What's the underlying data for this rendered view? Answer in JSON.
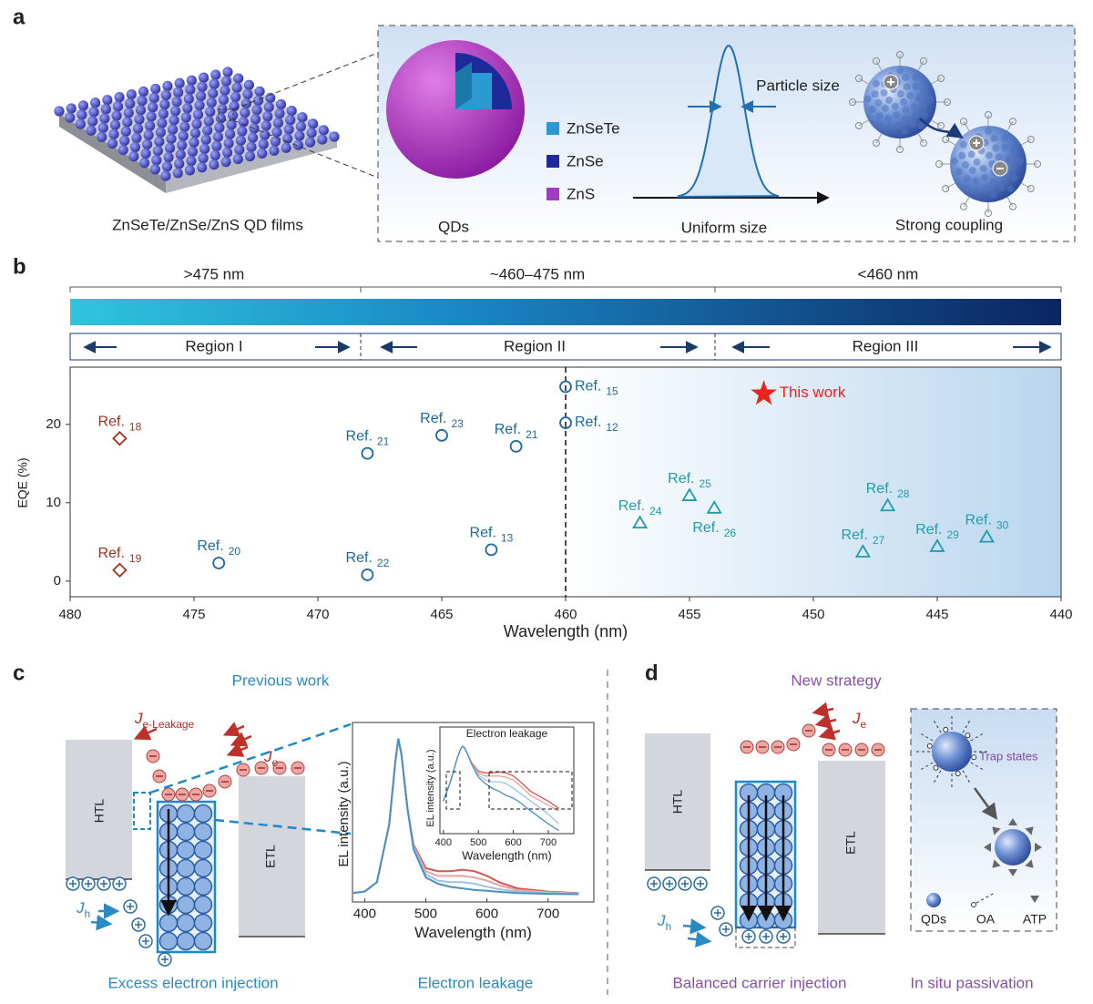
{
  "panel_a": {
    "label": "a",
    "film_caption": "ZnSeTe/ZnSe/ZnS QD films",
    "legend": [
      "ZnSeTe",
      "ZnSe",
      "ZnS"
    ],
    "legend_colors": [
      "#2a9ad0",
      "#1e2a9a",
      "#a03cc0"
    ],
    "qds": "QDs",
    "particle_size": "Particle size",
    "uniform_size": "Uniform size",
    "strong_coupling": "Strong coupling"
  },
  "panel_b": {
    "label": "b",
    "ranges": [
      ">475 nm",
      "~460–475 nm",
      "<460 nm"
    ],
    "regions": [
      "Region I",
      "Region II",
      "Region III"
    ]
  },
  "chart_data": [
    {
      "type": "scatter",
      "xlabel": "Wavelength (nm)",
      "ylabel": "EQE (%)",
      "xlim": [
        480,
        440
      ],
      "ylim": [
        -2,
        27.3
      ],
      "xticks": [
        480,
        475,
        470,
        465,
        460,
        455,
        450,
        445,
        440
      ],
      "yticks": [
        0,
        10,
        20
      ],
      "vline": 460,
      "series": [
        {
          "marker": "diamond",
          "color": "#a3301f",
          "x": [
            478,
            478
          ],
          "values": [
            18.2,
            1.4
          ],
          "labels": [
            "Ref.",
            "Ref."
          ],
          "refs": [
            "18",
            "19"
          ]
        },
        {
          "marker": "circle",
          "color": "#1d6a9a",
          "x": [
            474,
            468,
            468,
            465,
            462,
            463,
            460,
            460
          ],
          "values": [
            2.3,
            16.3,
            0.8,
            18.6,
            17.2,
            4.0,
            24.8,
            20.2
          ],
          "labels": [
            "Ref.",
            "Ref.",
            "Ref.",
            "Ref.",
            "Ref.",
            "Ref.",
            "Ref.",
            "Ref."
          ],
          "refs": [
            "20",
            "21",
            "22",
            "23",
            "21",
            "13",
            "15",
            "12"
          ]
        },
        {
          "marker": "triangle",
          "color": "#1f9bab",
          "x": [
            457,
            455,
            454,
            448,
            447,
            445,
            443
          ],
          "values": [
            7.4,
            10.9,
            9.3,
            3.7,
            9.6,
            4.4,
            5.6
          ],
          "labels": [
            "Ref.",
            "Ref.",
            "Ref.",
            "Ref.",
            "Ref.",
            "Ref.",
            "Ref."
          ],
          "refs": [
            "24",
            "25",
            "26",
            "27",
            "28",
            "29",
            "30"
          ]
        },
        {
          "marker": "star",
          "color": "#e8261c",
          "x": [
            452
          ],
          "values": [
            23.9
          ],
          "labels": [
            "This work"
          ]
        }
      ]
    },
    {
      "type": "line",
      "xlabel": "Wavelength (nm)",
      "ylabel": "EL intensity (a.u.)",
      "xlim": [
        380,
        775
      ],
      "ylim": [
        0,
        1.08
      ],
      "xticks": [
        400,
        500,
        600,
        700
      ],
      "x": [
        380,
        400,
        420,
        440,
        450,
        455,
        460,
        470,
        480,
        500,
        520,
        540,
        560,
        580,
        600,
        620,
        650,
        700,
        750
      ],
      "series": [
        {
          "color": "#d9534f",
          "values": [
            0.01,
            0.02,
            0.08,
            0.45,
            0.85,
            1.0,
            0.9,
            0.55,
            0.32,
            0.17,
            0.15,
            0.15,
            0.16,
            0.15,
            0.12,
            0.08,
            0.04,
            0.02,
            0.01
          ]
        },
        {
          "color": "#e8a3a0",
          "values": [
            0.01,
            0.02,
            0.08,
            0.45,
            0.85,
            1.0,
            0.9,
            0.55,
            0.31,
            0.15,
            0.12,
            0.12,
            0.12,
            0.11,
            0.09,
            0.06,
            0.03,
            0.015,
            0.008
          ]
        },
        {
          "color": "#9cc3e0",
          "values": [
            0.01,
            0.02,
            0.08,
            0.45,
            0.85,
            1.0,
            0.9,
            0.55,
            0.3,
            0.13,
            0.09,
            0.08,
            0.08,
            0.07,
            0.05,
            0.035,
            0.02,
            0.01,
            0.005
          ]
        },
        {
          "color": "#4a90c0",
          "values": [
            0.01,
            0.02,
            0.08,
            0.45,
            0.85,
            1.0,
            0.9,
            0.55,
            0.29,
            0.11,
            0.07,
            0.05,
            0.04,
            0.03,
            0.025,
            0.018,
            0.01,
            0.005,
            0.003
          ]
        }
      ]
    },
    {
      "type": "line",
      "title": "Electron leakage",
      "xlabel": "Wavelength (nm)",
      "ylabel": "EL intensity (a.u.)",
      "xlim": [
        390,
        773
      ],
      "ylim": [
        0.002,
        1.3
      ],
      "log_y": true,
      "xticks": [
        400,
        500,
        600,
        700
      ],
      "x": [
        400,
        420,
        440,
        450,
        455,
        460,
        470,
        480,
        500,
        520,
        540,
        560,
        580,
        600,
        620,
        650,
        700,
        730
      ],
      "series": [
        {
          "color": "#d9534f",
          "values": [
            0.02,
            0.08,
            0.45,
            0.85,
            1.0,
            0.9,
            0.55,
            0.32,
            0.17,
            0.15,
            0.15,
            0.16,
            0.15,
            0.12,
            0.08,
            0.04,
            0.02,
            0.012
          ]
        },
        {
          "color": "#e8a3a0",
          "values": [
            0.02,
            0.08,
            0.45,
            0.85,
            1.0,
            0.9,
            0.55,
            0.31,
            0.15,
            0.12,
            0.12,
            0.12,
            0.11,
            0.09,
            0.06,
            0.03,
            0.015,
            0.01
          ]
        },
        {
          "color": "#9cc3e0",
          "values": [
            0.02,
            0.08,
            0.45,
            0.85,
            1.0,
            0.9,
            0.55,
            0.3,
            0.13,
            0.09,
            0.08,
            0.08,
            0.07,
            0.05,
            0.035,
            0.02,
            0.008,
            0.004
          ]
        },
        {
          "color": "#4a90c0",
          "values": [
            0.02,
            0.08,
            0.45,
            0.85,
            1.0,
            0.9,
            0.55,
            0.29,
            0.11,
            0.07,
            0.05,
            0.04,
            0.03,
            0.025,
            0.018,
            0.01,
            0.004,
            0.0025
          ]
        }
      ]
    }
  ],
  "panel_c": {
    "label": "c",
    "title": "Previous work",
    "htl": "HTL",
    "etl": "ETL",
    "j": "J",
    "sub_leak": "e-Leakage",
    "sub_e": "e",
    "sub_h": "h",
    "caption_left": "Excess electron injection",
    "caption_right": "Electron leakage"
  },
  "panel_d": {
    "label": "d",
    "title": "New strategy",
    "htl": "HTL",
    "etl": "ETL",
    "j": "J",
    "sub_e": "e",
    "sub_h": "h",
    "trap_states": "Trap states",
    "legend": [
      "QDs",
      "OA",
      "ATP"
    ],
    "caption_left": "Balanced carrier injection",
    "caption_right": "In situ passivation"
  }
}
